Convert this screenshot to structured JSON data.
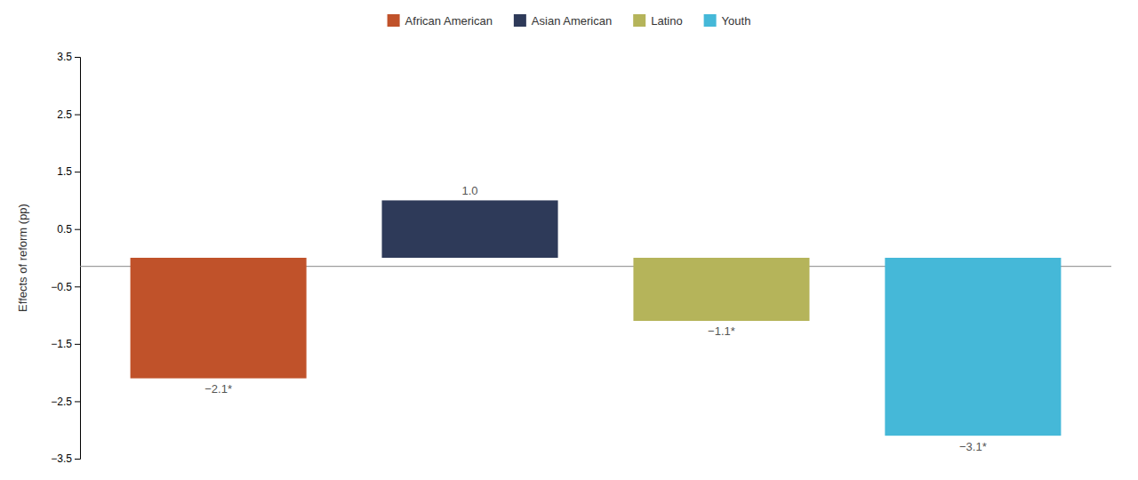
{
  "chart_data": {
    "type": "bar",
    "categories": [
      "African American",
      "Asian American",
      "Latino",
      "Youth"
    ],
    "values": [
      -2.1,
      1.0,
      -1.1,
      -3.1
    ],
    "value_labels": [
      "−2.1*",
      "1.0",
      "−1.1*",
      "−3.1*"
    ],
    "colors": [
      "#c0522a",
      "#2e3a59",
      "#b5b45a",
      "#45b8d8"
    ],
    "ylabel": "Effects of reform (pp)",
    "ylim": [
      -3.5,
      3.5
    ],
    "yticks": [
      {
        "value": -3.5,
        "label": "−3.5"
      },
      {
        "value": -2.5,
        "label": "−2.5"
      },
      {
        "value": -1.5,
        "label": "−1.5"
      },
      {
        "value": -0.5,
        "label": "−0.5"
      },
      0.5,
      1.5,
      2.5,
      3.5
    ],
    "hline_y": -0.15,
    "grid": false,
    "legend": "top",
    "tick_labels": "y"
  }
}
